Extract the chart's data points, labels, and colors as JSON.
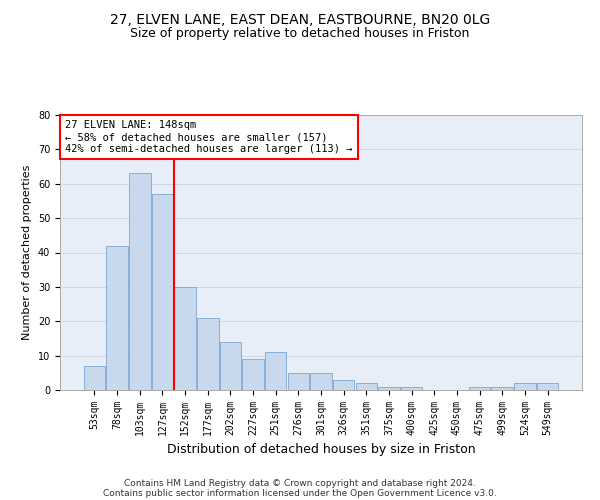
{
  "title_line1": "27, ELVEN LANE, EAST DEAN, EASTBOURNE, BN20 0LG",
  "title_line2": "Size of property relative to detached houses in Friston",
  "xlabel": "Distribution of detached houses by size in Friston",
  "ylabel": "Number of detached properties",
  "categories": [
    "53sqm",
    "78sqm",
    "103sqm",
    "127sqm",
    "152sqm",
    "177sqm",
    "202sqm",
    "227sqm",
    "251sqm",
    "276sqm",
    "301sqm",
    "326sqm",
    "351sqm",
    "375sqm",
    "400sqm",
    "425sqm",
    "450sqm",
    "475sqm",
    "499sqm",
    "524sqm",
    "549sqm"
  ],
  "values": [
    7,
    42,
    63,
    57,
    30,
    21,
    14,
    9,
    11,
    5,
    5,
    3,
    2,
    1,
    1,
    0,
    0,
    1,
    1,
    2,
    2
  ],
  "bar_color": "#c9d9ed",
  "bar_edge_color": "#7aa8d2",
  "vline_x": 3.5,
  "vline_color": "red",
  "annotation_line1": "27 ELVEN LANE: 148sqm",
  "annotation_line2": "← 58% of detached houses are smaller (157)",
  "annotation_line3": "42% of semi-detached houses are larger (113) →",
  "annotation_box_color": "white",
  "annotation_box_edge_color": "red",
  "ylim": [
    0,
    80
  ],
  "yticks": [
    0,
    10,
    20,
    30,
    40,
    50,
    60,
    70,
    80
  ],
  "grid_color": "#d0d8e8",
  "background_color": "#e8eef8",
  "footer_line1": "Contains HM Land Registry data © Crown copyright and database right 2024.",
  "footer_line2": "Contains public sector information licensed under the Open Government Licence v3.0.",
  "title_fontsize": 10,
  "subtitle_fontsize": 9,
  "xlabel_fontsize": 9,
  "ylabel_fontsize": 8,
  "tick_fontsize": 7,
  "annotation_fontsize": 7.5,
  "footer_fontsize": 6.5
}
